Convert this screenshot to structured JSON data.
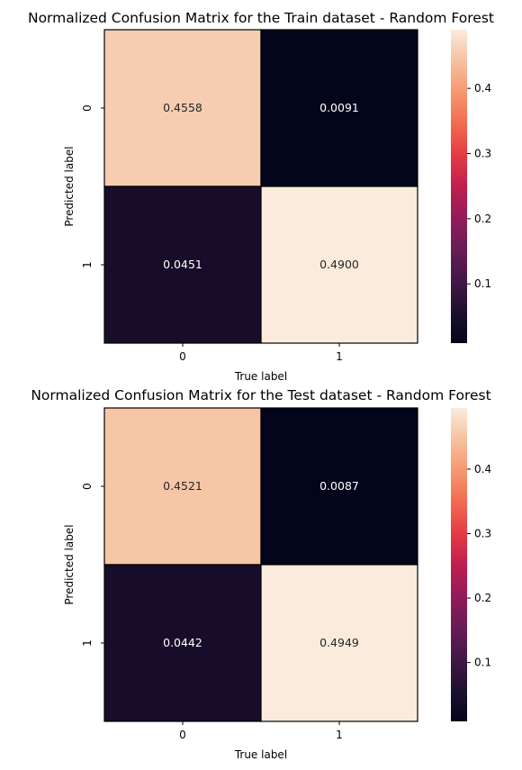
{
  "chart_data": [
    {
      "type": "heatmap",
      "title": "Normalized Confusion Matrix for the Train dataset - Random Forest",
      "xlabel": "True label",
      "ylabel": "Predicted label",
      "x_categories": [
        "0",
        "1"
      ],
      "y_categories": [
        "0",
        "1"
      ],
      "values": [
        [
          0.4558,
          0.0091
        ],
        [
          0.0451,
          0.49
        ]
      ],
      "value_labels": [
        [
          "0.4558",
          "0.0091"
        ],
        [
          "0.0451",
          "0.4900"
        ]
      ],
      "colorbar": {
        "ticks": [
          "0.1",
          "0.2",
          "0.3",
          "0.4"
        ],
        "range": [
          0.0091,
          0.49
        ]
      },
      "colormap": "rocket"
    },
    {
      "type": "heatmap",
      "title": "Normalized Confusion Matrix for the Test dataset - Random Forest",
      "xlabel": "True label",
      "ylabel": "Predicted label",
      "x_categories": [
        "0",
        "1"
      ],
      "y_categories": [
        "0",
        "1"
      ],
      "values": [
        [
          0.4521,
          0.0087
        ],
        [
          0.0442,
          0.4949
        ]
      ],
      "value_labels": [
        [
          "0.4521",
          "0.0087"
        ],
        [
          "0.0442",
          "0.4949"
        ]
      ],
      "colorbar": {
        "ticks": [
          "0.1",
          "0.2",
          "0.3",
          "0.4"
        ],
        "range": [
          0.0087,
          0.4949
        ]
      },
      "colormap": "rocket"
    }
  ]
}
